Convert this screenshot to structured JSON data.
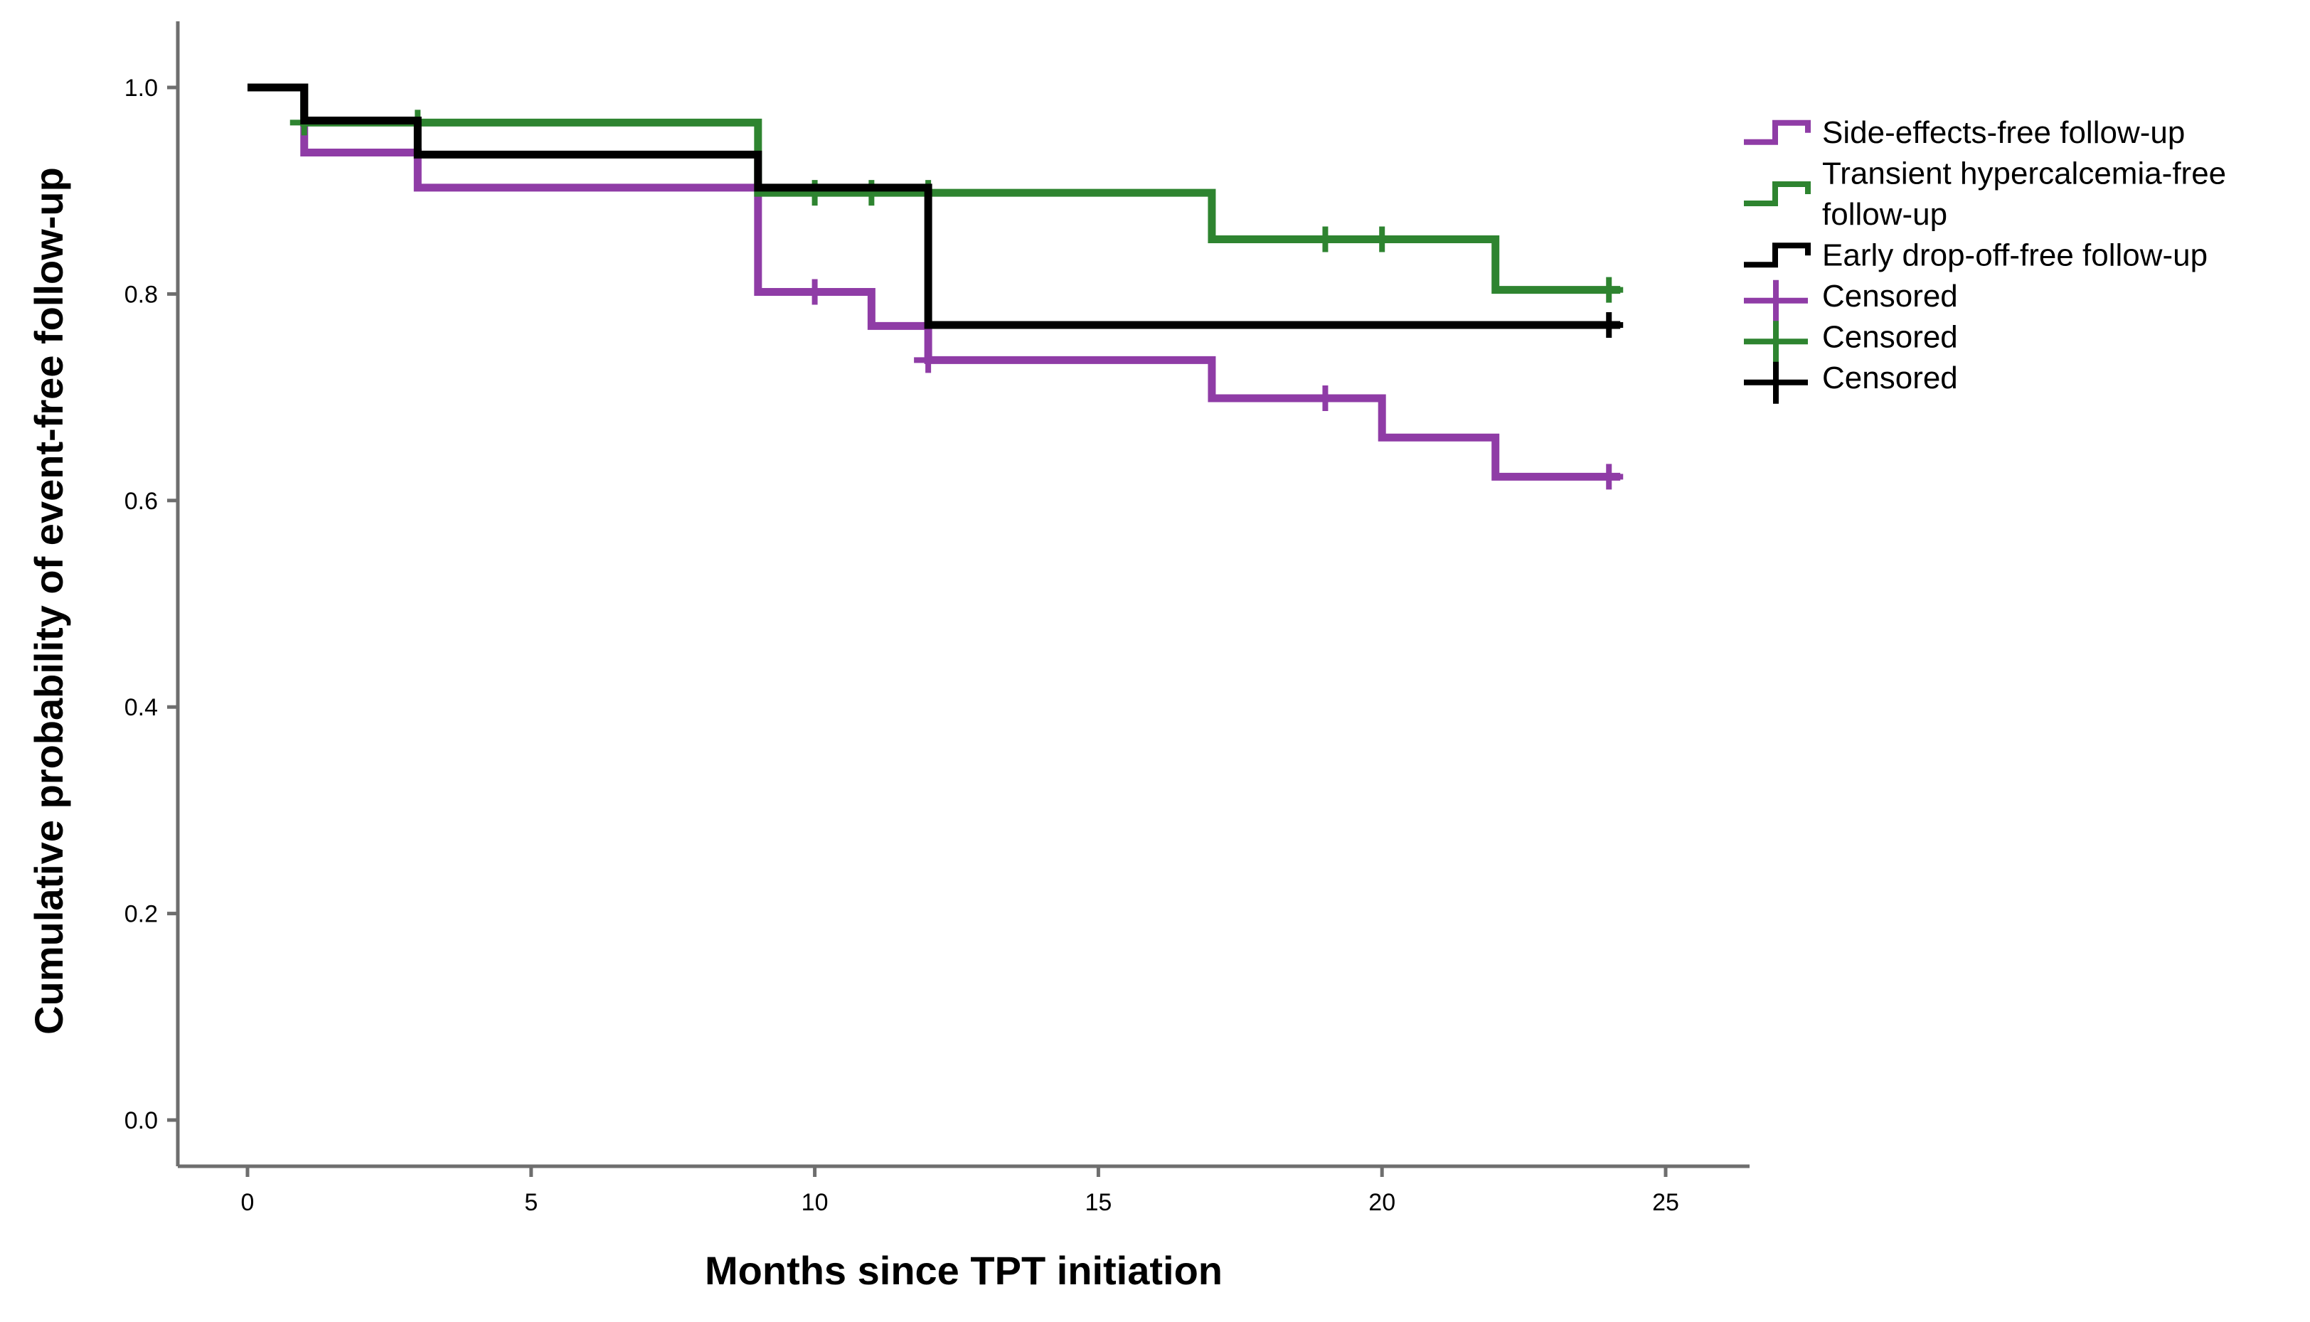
{
  "chart_data": {
    "type": "line",
    "subtype": "kaplan-meier-step-survival",
    "title": "",
    "xlabel": "Months since TPT initiation",
    "ylabel": "Cumulative probability of event-free follow-up",
    "xlim": [
      0,
      25
    ],
    "ylim": [
      0.0,
      1.0
    ],
    "xticks": [
      0,
      5,
      10,
      15,
      20,
      25
    ],
    "yticks": [
      0.0,
      0.2,
      0.4,
      0.6,
      0.8,
      1.0
    ],
    "xtick_labels": [
      "0",
      "5",
      "10",
      "15",
      "20",
      "25"
    ],
    "ytick_labels": [
      "0.0",
      "0.2",
      "0.4",
      "0.6",
      "0.8",
      "1.0"
    ],
    "grid": false,
    "legend_position": "right",
    "axis_color": "#6e6e6e",
    "series": [
      {
        "name": "Side-effects-free follow-up",
        "color": "#8f3ca6",
        "steps": [
          [
            0,
            1.0
          ],
          [
            1,
            0.937
          ],
          [
            3,
            0.903
          ],
          [
            9,
            0.802
          ],
          [
            11,
            0.769
          ],
          [
            12,
            0.736
          ],
          [
            17,
            0.699
          ],
          [
            20,
            0.661
          ],
          [
            22,
            0.623
          ],
          [
            24.2,
            0.623
          ]
        ],
        "censored": [
          [
            10,
            0.802
          ],
          [
            12,
            0.736
          ],
          [
            19,
            0.699
          ],
          [
            24,
            0.623
          ]
        ]
      },
      {
        "name": "Transient hypercalcemia-free follow-up",
        "color": "#2e8430",
        "steps": [
          [
            0,
            1.0
          ],
          [
            1,
            0.966
          ],
          [
            9,
            0.898
          ],
          [
            17,
            0.853
          ],
          [
            22,
            0.804
          ],
          [
            24.2,
            0.804
          ]
        ],
        "censored": [
          [
            1,
            0.966
          ],
          [
            3,
            0.966
          ],
          [
            10,
            0.898
          ],
          [
            11,
            0.898
          ],
          [
            12,
            0.898
          ],
          [
            19,
            0.853
          ],
          [
            20,
            0.853
          ],
          [
            24,
            0.804
          ]
        ]
      },
      {
        "name": "Early drop-off-free follow-up",
        "color": "#000000",
        "steps": [
          [
            0,
            1.0
          ],
          [
            1,
            0.968
          ],
          [
            3,
            0.935
          ],
          [
            9,
            0.903
          ],
          [
            12,
            0.77
          ],
          [
            24.2,
            0.77
          ]
        ],
        "censored": [
          [
            24,
            0.77
          ]
        ]
      }
    ]
  },
  "legend": {
    "items": [
      {
        "type": "step",
        "color": "#8f3ca6",
        "lines": [
          "Side-effects-free follow-up"
        ]
      },
      {
        "type": "step",
        "color": "#2e8430",
        "lines": [
          "Transient hypercalcemia-free",
          "follow-up"
        ]
      },
      {
        "type": "step",
        "color": "#000000",
        "lines": [
          "Early drop-off-free follow-up"
        ]
      },
      {
        "type": "plus",
        "color": "#8f3ca6",
        "lines": [
          "Censored"
        ]
      },
      {
        "type": "plus",
        "color": "#2e8430",
        "lines": [
          "Censored"
        ]
      },
      {
        "type": "plus",
        "color": "#000000",
        "lines": [
          "Censored"
        ]
      }
    ]
  }
}
